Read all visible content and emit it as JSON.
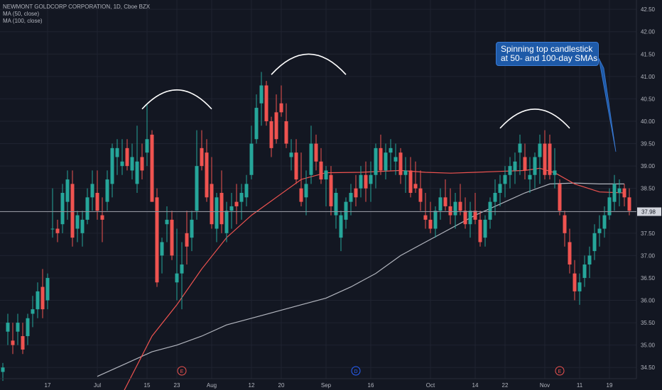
{
  "legend": {
    "symbol_line": "NEWMONT GOLDCORP CORPORATION, 1D, Cboe BZX",
    "ma50_label": "MA (50, close)",
    "ma100_label": "MA (100, close)"
  },
  "annotation": {
    "line1": "Spinning top candlestick",
    "line2": "at 50- and 100-day SMAs"
  },
  "last_price": "37.98",
  "colors": {
    "background": "#131722",
    "grid": "#1f2330",
    "up": "#26a69a",
    "down": "#ef5350",
    "ma50": "#ef5350",
    "ma100": "#b2b5be",
    "callout": "#1e5aa8",
    "arc": "#ffffff"
  },
  "chart_data": {
    "type": "candlestick",
    "y_range": [
      34.25,
      42.55
    ],
    "y_ticks": [
      "34.50",
      "35.00",
      "35.50",
      "36.00",
      "36.50",
      "37.00",
      "37.50",
      "38.00",
      "38.50",
      "39.00",
      "39.50",
      "40.00",
      "40.50",
      "41.00",
      "41.50",
      "42.00",
      "42.50"
    ],
    "x_ticks": [
      {
        "label": "17",
        "index": 9
      },
      {
        "label": "Jul",
        "index": 19
      },
      {
        "label": "15",
        "index": 29
      },
      {
        "label": "23",
        "index": 35
      },
      {
        "label": "Aug",
        "index": 42
      },
      {
        "label": "12",
        "index": 50
      },
      {
        "label": "20",
        "index": 56
      },
      {
        "label": "Sep",
        "index": 65
      },
      {
        "label": "16",
        "index": 74
      },
      {
        "label": "Oct",
        "index": 86
      },
      {
        "label": "14",
        "index": 95
      },
      {
        "label": "22",
        "index": 101
      },
      {
        "label": "Nov",
        "index": 109
      },
      {
        "label": "11",
        "index": 116
      },
      {
        "label": "19",
        "index": 122
      }
    ],
    "events": [
      {
        "label": "E",
        "index": 36,
        "color": "#ef5350"
      },
      {
        "label": "D",
        "index": 71,
        "color": "#2962ff"
      },
      {
        "label": "E",
        "index": 112,
        "color": "#ef5350"
      }
    ],
    "last_price": 37.98,
    "candles": [
      [
        34.4,
        34.6,
        34.2,
        34.5
      ],
      [
        35.3,
        35.7,
        35.0,
        35.5
      ],
      [
        35.1,
        35.5,
        34.8,
        35.0
      ],
      [
        35.3,
        35.7,
        35.0,
        35.5
      ],
      [
        35.2,
        35.5,
        34.8,
        34.9
      ],
      [
        35.2,
        35.7,
        35.0,
        35.6
      ],
      [
        35.7,
        36.1,
        35.4,
        35.8
      ],
      [
        35.8,
        36.4,
        35.6,
        36.2
      ],
      [
        36.3,
        36.7,
        35.6,
        35.8
      ],
      [
        36.0,
        36.6,
        35.8,
        36.5
      ],
      [
        37.6,
        38.5,
        37.4,
        37.6
      ],
      [
        37.6,
        37.8,
        37.3,
        37.5
      ],
      [
        37.7,
        38.6,
        37.5,
        38.4
      ],
      [
        38.2,
        38.9,
        37.8,
        38.7
      ],
      [
        38.6,
        38.9,
        37.2,
        37.4
      ],
      [
        37.6,
        38.0,
        37.3,
        37.9
      ],
      [
        37.5,
        38.0,
        37.2,
        37.8
      ],
      [
        37.8,
        38.5,
        37.7,
        38.3
      ],
      [
        38.3,
        38.9,
        38.0,
        38.6
      ],
      [
        38.4,
        38.9,
        37.8,
        38.0
      ],
      [
        37.9,
        38.3,
        37.3,
        37.8
      ],
      [
        38.2,
        38.9,
        38.0,
        38.7
      ],
      [
        38.6,
        39.5,
        38.3,
        39.4
      ],
      [
        39.2,
        39.6,
        38.8,
        39.4
      ],
      [
        39.0,
        39.6,
        38.8,
        39.1
      ],
      [
        39.4,
        39.6,
        38.9,
        39.0
      ],
      [
        38.9,
        39.5,
        38.7,
        39.2
      ],
      [
        38.6,
        39.9,
        38.4,
        39.1
      ],
      [
        39.2,
        39.5,
        38.7,
        38.9
      ],
      [
        39.3,
        40.4,
        39.0,
        39.6
      ],
      [
        39.7,
        39.8,
        38.2,
        38.2
      ],
      [
        38.3,
        38.5,
        36.3,
        36.4
      ],
      [
        37.0,
        37.4,
        36.6,
        37.3
      ],
      [
        37.7,
        38.1,
        37.3,
        37.8
      ],
      [
        37.8,
        38.0,
        36.9,
        37.0
      ],
      [
        36.4,
        37.6,
        36.0,
        36.6
      ],
      [
        36.6,
        37.3,
        35.8,
        36.8
      ],
      [
        37.5,
        38.0,
        36.8,
        37.2
      ],
      [
        37.4,
        38.0,
        37.1,
        37.8
      ],
      [
        38.0,
        39.8,
        37.8,
        39.0
      ],
      [
        39.4,
        39.8,
        38.9,
        39.0
      ],
      [
        39.3,
        39.6,
        38.2,
        38.3
      ],
      [
        38.6,
        39.2,
        37.6,
        37.7
      ],
      [
        37.6,
        38.4,
        37.3,
        38.3
      ],
      [
        38.4,
        38.9,
        37.5,
        37.7
      ],
      [
        37.5,
        38.2,
        37.3,
        38.0
      ],
      [
        38.0,
        38.4,
        37.6,
        38.1
      ],
      [
        38.2,
        38.6,
        37.7,
        38.1
      ],
      [
        38.2,
        38.6,
        37.8,
        38.4
      ],
      [
        38.3,
        38.8,
        38.1,
        38.6
      ],
      [
        38.8,
        39.9,
        38.7,
        39.5
      ],
      [
        39.6,
        40.6,
        39.5,
        40.3
      ],
      [
        40.4,
        41.1,
        39.9,
        40.8
      ],
      [
        40.8,
        40.9,
        39.9,
        40.0
      ],
      [
        40.0,
        40.1,
        39.2,
        39.4
      ],
      [
        40.2,
        40.6,
        39.5,
        39.6
      ],
      [
        40.4,
        40.8,
        40.1,
        40.2
      ],
      [
        40.0,
        40.4,
        39.4,
        39.5
      ],
      [
        39.2,
        39.6,
        38.9,
        39.3
      ],
      [
        39.3,
        39.6,
        38.6,
        38.7
      ],
      [
        38.5,
        39.3,
        38.1,
        38.2
      ],
      [
        38.3,
        38.9,
        37.9,
        38.6
      ],
      [
        38.8,
        39.9,
        38.6,
        39.5
      ],
      [
        39.5,
        39.7,
        38.9,
        39.1
      ],
      [
        39.1,
        39.4,
        38.6,
        38.7
      ],
      [
        38.7,
        39.0,
        38.1,
        38.9
      ],
      [
        38.8,
        39.0,
        37.9,
        38.1
      ],
      [
        37.9,
        38.5,
        37.6,
        38.4
      ],
      [
        37.4,
        38.0,
        37.1,
        37.9
      ],
      [
        37.8,
        38.3,
        37.6,
        38.2
      ],
      [
        38.2,
        38.6,
        37.9,
        38.4
      ],
      [
        38.5,
        38.8,
        38.1,
        38.3
      ],
      [
        38.5,
        39.0,
        38.3,
        38.8
      ],
      [
        38.8,
        39.1,
        38.2,
        38.5
      ],
      [
        38.6,
        39.1,
        38.2,
        38.8
      ],
      [
        38.8,
        39.5,
        38.5,
        39.4
      ],
      [
        39.4,
        39.7,
        38.8,
        38.9
      ],
      [
        38.9,
        39.5,
        38.7,
        39.3
      ],
      [
        39.3,
        39.6,
        38.9,
        39.4
      ],
      [
        39.1,
        39.5,
        38.8,
        39.2
      ],
      [
        39.3,
        39.4,
        38.6,
        38.8
      ],
      [
        38.8,
        39.2,
        38.4,
        38.9
      ],
      [
        38.9,
        39.2,
        38.3,
        38.4
      ],
      [
        38.6,
        39.1,
        38.4,
        38.5
      ],
      [
        38.5,
        38.9,
        38.0,
        38.2
      ],
      [
        37.9,
        38.4,
        37.6,
        37.8
      ],
      [
        37.8,
        38.2,
        37.5,
        37.6
      ],
      [
        37.6,
        38.1,
        37.4,
        38.0
      ],
      [
        38.0,
        38.5,
        37.8,
        38.3
      ],
      [
        38.3,
        38.7,
        38.0,
        38.1
      ],
      [
        38.1,
        38.5,
        37.7,
        37.9
      ],
      [
        37.9,
        38.4,
        37.6,
        38.2
      ],
      [
        38.2,
        38.6,
        37.9,
        38.0
      ],
      [
        38.0,
        38.3,
        37.6,
        37.7
      ],
      [
        37.7,
        38.2,
        37.4,
        38.0
      ],
      [
        38.0,
        38.4,
        37.7,
        37.8
      ],
      [
        37.8,
        38.0,
        37.2,
        37.3
      ],
      [
        37.4,
        37.9,
        37.2,
        37.8
      ],
      [
        37.8,
        38.3,
        37.6,
        38.2
      ],
      [
        38.2,
        38.7,
        37.9,
        38.4
      ],
      [
        38.4,
        38.8,
        38.1,
        38.6
      ],
      [
        38.6,
        39.0,
        38.3,
        38.8
      ],
      [
        38.8,
        39.2,
        38.5,
        39.0
      ],
      [
        38.9,
        39.3,
        38.6,
        39.1
      ],
      [
        39.3,
        39.7,
        38.8,
        39.5
      ],
      [
        39.2,
        39.5,
        38.7,
        38.9
      ],
      [
        38.7,
        39.2,
        38.4,
        38.8
      ],
      [
        38.8,
        39.3,
        38.5,
        39.2
      ],
      [
        39.2,
        39.7,
        38.6,
        39.5
      ],
      [
        39.5,
        39.8,
        38.7,
        38.8
      ],
      [
        39.5,
        39.7,
        38.7,
        38.8
      ],
      [
        38.8,
        39.4,
        38.5,
        38.9
      ],
      [
        38.6,
        38.7,
        37.9,
        38.0
      ],
      [
        37.9,
        38.0,
        37.2,
        37.5
      ],
      [
        37.3,
        37.6,
        36.6,
        36.8
      ],
      [
        36.6,
        36.9,
        36.0,
        36.2
      ],
      [
        36.2,
        36.6,
        35.9,
        36.4
      ],
      [
        36.5,
        37.0,
        36.3,
        36.8
      ],
      [
        36.8,
        37.2,
        36.5,
        37.0
      ],
      [
        37.1,
        37.7,
        36.9,
        37.5
      ],
      [
        37.5,
        37.9,
        37.2,
        37.6
      ],
      [
        37.6,
        38.1,
        37.4,
        37.9
      ],
      [
        37.9,
        38.5,
        37.8,
        38.3
      ],
      [
        38.2,
        38.8,
        38.0,
        38.6
      ],
      [
        38.4,
        38.7,
        38.1,
        38.5
      ],
      [
        38.5,
        38.6,
        38.1,
        38.3
      ],
      [
        38.3,
        38.5,
        37.9,
        38.0
      ]
    ],
    "ma50": [
      [
        24,
        33.9
      ],
      [
        30,
        35.2
      ],
      [
        35,
        35.9
      ],
      [
        40,
        36.7
      ],
      [
        45,
        37.4
      ],
      [
        50,
        37.9
      ],
      [
        55,
        38.3
      ],
      [
        60,
        38.7
      ],
      [
        65,
        38.85
      ],
      [
        72,
        38.86
      ],
      [
        80,
        38.9
      ],
      [
        85,
        38.86
      ],
      [
        90,
        38.84
      ],
      [
        95,
        38.86
      ],
      [
        100,
        38.88
      ],
      [
        105,
        38.9
      ],
      [
        108,
        38.95
      ],
      [
        111,
        38.85
      ],
      [
        115,
        38.6
      ],
      [
        120,
        38.42
      ],
      [
        125,
        38.4
      ]
    ],
    "ma100": [
      [
        19,
        34.3
      ],
      [
        25,
        34.6
      ],
      [
        30,
        34.85
      ],
      [
        35,
        35.0
      ],
      [
        40,
        35.2
      ],
      [
        45,
        35.45
      ],
      [
        50,
        35.6
      ],
      [
        55,
        35.75
      ],
      [
        60,
        35.9
      ],
      [
        65,
        36.05
      ],
      [
        70,
        36.3
      ],
      [
        75,
        36.6
      ],
      [
        80,
        37.0
      ],
      [
        85,
        37.3
      ],
      [
        90,
        37.6
      ],
      [
        95,
        37.9
      ],
      [
        100,
        38.15
      ],
      [
        105,
        38.4
      ],
      [
        110,
        38.6
      ],
      [
        115,
        38.62
      ],
      [
        120,
        38.6
      ],
      [
        125,
        38.6
      ]
    ],
    "arcs": [
      {
        "from_index": 28,
        "to_index": 42,
        "peak": 40.7
      },
      {
        "from_index": 54,
        "to_index": 69,
        "peak": 41.5
      },
      {
        "from_index": 100,
        "to_index": 114,
        "peak": 40.27
      }
    ]
  }
}
